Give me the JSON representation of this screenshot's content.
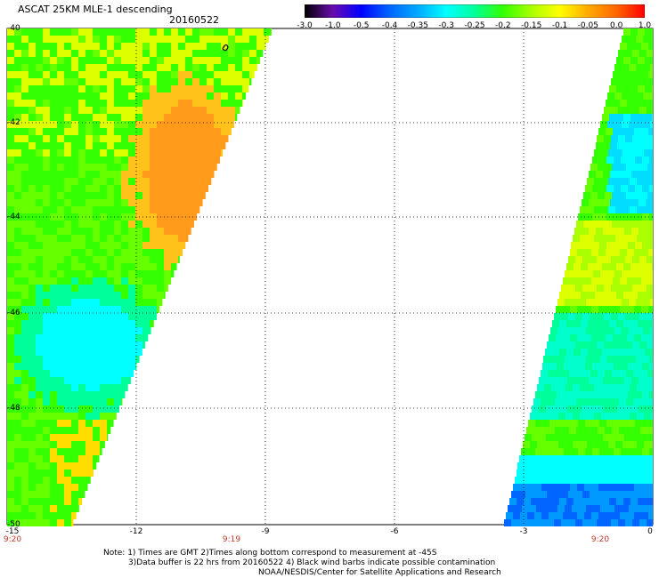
{
  "header": {
    "title": "ASCAT 25KM MLE-1 descending",
    "date": "20160522"
  },
  "colorbar": {
    "labels": [
      "-3.0",
      "-1.0",
      "-0.5",
      "-0.4",
      "-0.35",
      "-0.3",
      "-0.25",
      "-0.2",
      "-0.15",
      "-0.1",
      "-0.05",
      "0.0",
      "1.0"
    ],
    "colors": [
      "#000000",
      "#6a0dad",
      "#0000ff",
      "#0066ff",
      "#00aaff",
      "#00ffff",
      "#00ff99",
      "#33ff00",
      "#aaff00",
      "#ffff00",
      "#ffaa00",
      "#ff6600",
      "#ff0000"
    ]
  },
  "axes": {
    "lat_labels": [
      "-40",
      "-42",
      "-44",
      "-46",
      "-48",
      "-50"
    ],
    "lon_labels": [
      "-15",
      "-12",
      "-9",
      "-6",
      "-3",
      "0"
    ],
    "time_labels": [
      "9:20",
      "9:19",
      "9:20"
    ]
  },
  "notes": {
    "line1": "Note: 1) Times are GMT 2)Times along bottom correspond to measurement at -45S",
    "line2": "3)Data buffer is 22 hrs from 20160522 4) Black wind barbs indicate possible contamination",
    "line3": "NOAA/NESDIS/Center for Satellite Applications and Research"
  }
}
